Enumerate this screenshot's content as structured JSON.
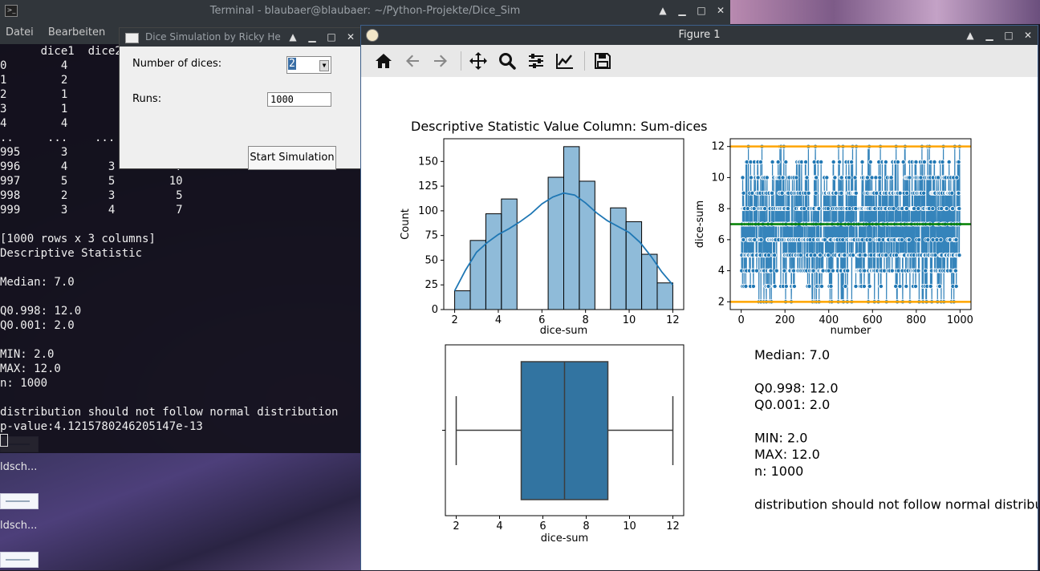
{
  "terminal": {
    "title": "Terminal - blaubaer@blaubaer: ~/Python-Projekte/Dice_Sim",
    "menu": [
      "Datei",
      "Bearbeiten"
    ],
    "lines": [
      "      dice1  dice2",
      "0        4",
      "1        2",
      "2        1",
      "3        1",
      "4        4",
      "..     ...    ...",
      "995      3",
      "996      4      3         7",
      "997      5      5        10",
      "998      2      3         5",
      "999      3      4         7",
      "",
      "[1000 rows x 3 columns]",
      "Descriptive Statistic",
      "",
      "Median: 7.0",
      "",
      "Q0.998: 12.0",
      "Q0.001: 2.0",
      "",
      "MIN: 2.0",
      "MAX: 12.0",
      "n: 1000",
      "",
      "distribution should not follow normal distribution",
      "p-value:4.1215780246205147e-13"
    ]
  },
  "dialog": {
    "title": "Dice Simulation by Ricky He",
    "dices_label": "Number of dices:",
    "dices_value": "2",
    "runs_label": "Runs:",
    "runs_value": "1000",
    "start_button": "Start Simulation"
  },
  "desktop": {
    "labels": [
      "ldsch...",
      "ldsch..."
    ]
  },
  "figure": {
    "window_title": "Figure 1",
    "toolbar": [
      "home-icon",
      "back-icon",
      "forward-icon",
      "pan-icon",
      "zoom-icon",
      "configure-icon",
      "axes-edit-icon",
      "save-icon"
    ],
    "suptitle": "Descriptive Statistic Value Column: Sum-dices",
    "stats_text": [
      "Median: 7.0",
      "",
      "Q0.998: 12.0",
      "Q0.001: 2.0",
      "",
      "MIN: 2.0",
      "MAX: 12.0",
      "n: 1000",
      "",
      "distribution should not follow normal distribution"
    ]
  },
  "chart_data": [
    {
      "type": "bar",
      "subtype": "histogram-with-kde",
      "bin_edges": [
        2.0,
        2.7143,
        3.4286,
        4.1429,
        4.8571,
        5.5714,
        6.2857,
        7.0,
        7.7143,
        8.4286,
        9.1429,
        9.8571,
        10.5714,
        11.2857,
        12.0
      ],
      "values": [
        19,
        70,
        97,
        112,
        0,
        0,
        134,
        165,
        130,
        0,
        103,
        89,
        56,
        27
      ],
      "kde_x": [
        2,
        2.5,
        3,
        3.5,
        4,
        4.5,
        5,
        5.5,
        6,
        6.5,
        7,
        7.5,
        8,
        8.5,
        9,
        9.5,
        10,
        10.5,
        11,
        11.5,
        12
      ],
      "kde_y": [
        19,
        40,
        58,
        68,
        76,
        82,
        89,
        97,
        107,
        114,
        118,
        116,
        108,
        98,
        90,
        84,
        78,
        68,
        54,
        38,
        25
      ],
      "xlabel": "dice-sum",
      "ylabel": "Count",
      "xticks": [
        2,
        4,
        6,
        8,
        10,
        12
      ],
      "yticks": [
        0,
        25,
        50,
        75,
        100,
        125,
        150
      ],
      "xlim": [
        1.5,
        12.5
      ],
      "ylim": [
        0,
        173
      ],
      "color": "#1f77b4"
    },
    {
      "type": "scatter",
      "xlabel": "number",
      "ylabel": "dice-sum",
      "xlim": [
        -50,
        1050
      ],
      "ylim": [
        1.5,
        12.5
      ],
      "xticks": [
        0,
        200,
        400,
        600,
        800,
        1000
      ],
      "yticks": [
        2,
        4,
        6,
        8,
        10,
        12
      ],
      "n_points": 1000,
      "value_levels": [
        2,
        3,
        4,
        5,
        6,
        7,
        8,
        9,
        10,
        11,
        12
      ],
      "hlines": [
        {
          "y": 12.0,
          "color": "#ffa500"
        },
        {
          "y": 7.0,
          "color": "#008000"
        },
        {
          "y": 2.0,
          "color": "#ffa500"
        }
      ],
      "color": "#1f77b4"
    },
    {
      "type": "boxplot",
      "xlabel": "dice-sum",
      "xlim": [
        1.5,
        12.5
      ],
      "xticks": [
        2,
        4,
        6,
        8,
        10,
        12
      ],
      "whisker_low": 2,
      "q1": 5,
      "median": 7,
      "q3": 9,
      "whisker_high": 12,
      "color": "#3274a1"
    }
  ]
}
